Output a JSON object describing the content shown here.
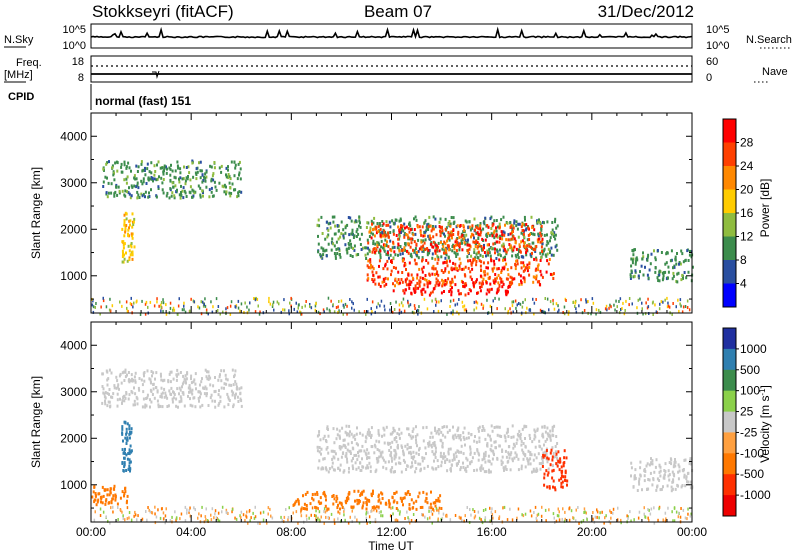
{
  "header": {
    "station": "Stokkseyri (fitACF)",
    "beam": "Beam 07",
    "date": "31/Dec/2012"
  },
  "top_panels": {
    "nsky_label": "N.Sky",
    "nsearch_label": "N.Search",
    "noise_tick_high": "10^5",
    "noise_tick_low": "10^0",
    "freq_label": "Freq.",
    "freq_unit": "[MHz]",
    "freq_tick_high": "18",
    "freq_tick_low": "8",
    "nave_label": "Nave",
    "nave_tick_high": "60",
    "nave_tick_low": "0",
    "cpid_label": "CPID",
    "cpid_value": "normal (fast) 151"
  },
  "chart_data": [
    {
      "type": "heatmap",
      "name": "power",
      "ylabel": "Slant Range [km]",
      "xlabel": "Time UT",
      "y_ticks": [
        "1000",
        "2000",
        "3000",
        "4000"
      ],
      "y_tick_values": [
        1000,
        2000,
        3000,
        4000
      ],
      "ylim": [
        200,
        4500
      ],
      "x_tick_labels": [
        "00:00",
        "04:00",
        "08:00",
        "12:00",
        "16:00",
        "20:00",
        "00:00"
      ],
      "xlim_hours": [
        0,
        24
      ],
      "colorbar_label": "Power [dB]",
      "colorbar_ticks": [
        "28",
        "24",
        "20",
        "16",
        "12",
        "8",
        "4"
      ],
      "colorbar_colors": [
        "#ff0000",
        "#ff4000",
        "#ff8800",
        "#ffcc00",
        "#8fbc3f",
        "#3c8c4c",
        "#2a4fa0",
        "#0000ff"
      ],
      "regions": [
        {
          "t0": 0.4,
          "t1": 6.0,
          "r0": 2700,
          "r1": 3500,
          "level": 8
        },
        {
          "t0": 1.2,
          "t1": 1.7,
          "r0": 1300,
          "r1": 2400,
          "level": 16
        },
        {
          "t0": 9.0,
          "t1": 18.6,
          "r0": 1400,
          "r1": 2300,
          "level": 8
        },
        {
          "t0": 11.0,
          "t1": 18.0,
          "r0": 1500,
          "r1": 2150,
          "level": 24
        },
        {
          "t0": 11.0,
          "t1": 18.5,
          "r0": 800,
          "r1": 1400,
          "level": 24
        },
        {
          "t0": 12.0,
          "t1": 16.8,
          "r0": 600,
          "r1": 900,
          "level": 28
        },
        {
          "t0": 21.5,
          "t1": 24.0,
          "r0": 900,
          "r1": 1600,
          "level": 8
        }
      ]
    },
    {
      "type": "heatmap",
      "name": "velocity",
      "ylabel": "Slant Range [km]",
      "xlabel": "Time UT",
      "y_ticks": [
        "1000",
        "2000",
        "3000",
        "4000"
      ],
      "y_tick_values": [
        1000,
        2000,
        3000,
        4000
      ],
      "ylim": [
        200,
        4500
      ],
      "x_tick_labels": [
        "00:00",
        "04:00",
        "08:00",
        "12:00",
        "16:00",
        "20:00",
        "00:00"
      ],
      "xlim_hours": [
        0,
        24
      ],
      "colorbar_label": "Velocity [m s^-1]",
      "colorbar_ticks": [
        "1000",
        "500",
        "100",
        "25",
        "-25",
        "-100",
        "-500",
        "-1000"
      ],
      "colorbar_colors": [
        "#2030a0",
        "#2f7fb0",
        "#3c8c4c",
        "#8bd04a",
        "#c8c8c8",
        "#ffa040",
        "#ff7800",
        "#ff3000",
        "#ee0000"
      ],
      "regions": [
        {
          "t0": 0.4,
          "t1": 6.0,
          "r0": 2700,
          "r1": 3500,
          "level": 0
        },
        {
          "t0": 1.2,
          "t1": 1.6,
          "r0": 1300,
          "r1": 2400,
          "level": 500
        },
        {
          "t0": 9.0,
          "t1": 18.6,
          "r0": 1300,
          "r1": 2300,
          "level": 0
        },
        {
          "t0": 18.0,
          "t1": 19.0,
          "r0": 900,
          "r1": 1800,
          "level": -400
        },
        {
          "t0": 8.0,
          "t1": 14.0,
          "r0": 500,
          "r1": 900,
          "level": -80
        },
        {
          "t0": 0.0,
          "t1": 1.5,
          "r0": 600,
          "r1": 1000,
          "level": -200
        },
        {
          "t0": 21.5,
          "t1": 24.0,
          "r0": 900,
          "r1": 1600,
          "level": 0
        }
      ]
    }
  ]
}
